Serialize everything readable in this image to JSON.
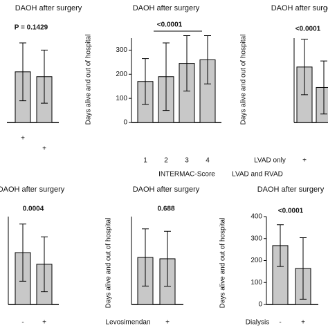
{
  "chart_data": [
    {
      "type": "bar",
      "title": "DAOH after surgery",
      "annotation": "P = 0.1429",
      "categories": [
        "+",
        "+"
      ],
      "values": [
        210,
        190
      ],
      "errors": [
        120,
        110
      ],
      "ylim": [
        0,
        350
      ],
      "color": "#c8c8c8"
    },
    {
      "type": "bar",
      "title": "DAOH after surgery",
      "annotation": "<0.0001",
      "categories": [
        "1",
        "2",
        "3",
        "4"
      ],
      "values": [
        170,
        190,
        245,
        260
      ],
      "errors": [
        95,
        140,
        115,
        100
      ],
      "xlabel": "INTERMAC-Score",
      "ylabel": "Days alive and out of hospital",
      "ylim": [
        0,
        350
      ],
      "yticks": [
        0,
        100,
        200,
        300
      ],
      "color": "#c8c8c8"
    },
    {
      "type": "bar",
      "title": "DAOH after surgery",
      "annotation": "<0.0001",
      "categories": [
        "+",
        null
      ],
      "row_labels": [
        "LVAD only",
        "LVAD and RVAD"
      ],
      "values": [
        230,
        145
      ],
      "errors": [
        115,
        110
      ],
      "ylabel": "Days alive and out of hospital",
      "ylim": [
        0,
        350
      ],
      "color": "#c8c8c8"
    },
    {
      "type": "bar",
      "title": "DAOH after surgery",
      "annotation": "0.0004",
      "categories": [
        "-",
        "+"
      ],
      "values": [
        236,
        183
      ],
      "errors": [
        130,
        125
      ],
      "ylim": [
        0,
        400
      ],
      "color": "#c8c8c8"
    },
    {
      "type": "bar",
      "title": "DAOH after surgery",
      "annotation": "0.688",
      "categories": [
        "-",
        "+"
      ],
      "values": [
        214,
        208
      ],
      "errors": [
        130,
        125
      ],
      "xlabel": "Levosimendan",
      "ylabel": "Days alive and out of hospital",
      "ylim": [
        0,
        400
      ],
      "color": "#c8c8c8"
    },
    {
      "type": "bar",
      "title": "DAOH after surgery",
      "annotation": "<0.0001",
      "categories": [
        "-",
        "+"
      ],
      "values": [
        268,
        164
      ],
      "errors": [
        95,
        140
      ],
      "xlabel": "Dialysis",
      "ylabel": "Days alive and out of hospital",
      "ylim": [
        0,
        400
      ],
      "yticks": [
        0,
        100,
        200,
        300,
        400
      ],
      "color": "#c8c8c8"
    }
  ]
}
